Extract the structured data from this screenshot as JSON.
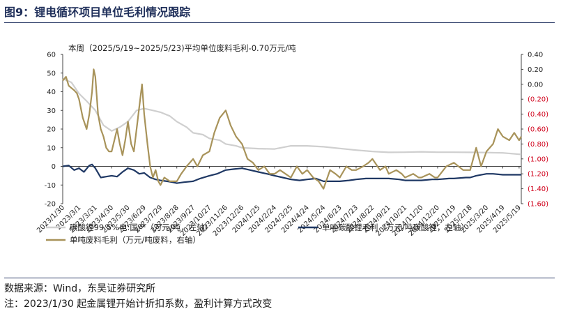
{
  "figure_title": "图9：锂电循环项目单位毛利情况跟踪",
  "source_note": "数据来源：Wind，东吴证券研究所",
  "formula_note": "注：2023/1/30 起金属锂开始计折扣系数，盈利计算方式改变",
  "chart_data": {
    "type": "line",
    "annotation": "本周（2025/5/19~2025/5/23)平均单位废料毛利-0.70万元/吨",
    "left_axis": {
      "ylim": [
        -20,
        60
      ],
      "ticks": [
        -20,
        -10,
        0,
        10,
        20,
        30,
        40,
        50,
        60
      ]
    },
    "right_axis": {
      "ylim": [
        -1.6,
        0.4
      ],
      "ticks": [
        "(1.60)",
        "(1.40)",
        "(1.20)",
        "(1.00)",
        "(0.80)",
        "(0.60)",
        "(0.40)",
        "(0.20)",
        "0.00",
        "0.20",
        "0.40"
      ],
      "tick_values": [
        -1.6,
        -1.4,
        -1.2,
        -1.0,
        -0.8,
        -0.6,
        -0.4,
        -0.2,
        0.0,
        0.2,
        0.4
      ]
    },
    "x_ticks": [
      "2023/1/30",
      "2023/3/1",
      "2023/3/31",
      "2023/4/30",
      "2023/5/30",
      "2023/6/29",
      "2023/7/29",
      "2023/8/28",
      "2023/9/27",
      "2023/10/27",
      "2023/11/26",
      "2023/12/26",
      "2024/1/25",
      "2024/2/24",
      "2024/3/25",
      "2024/4/24",
      "2024/5/24",
      "2024/6/23",
      "2024/7/23",
      "2024/8/22",
      "2024/9/21",
      "2024/10/21",
      "2024/11/20",
      "2024/12/20",
      "2025/1/19",
      "2025/2/18",
      "2025/3/20",
      "2025/4/19",
      "2025/5/19"
    ],
    "series": [
      {
        "name": "碳酸锂99.5%电:国产（万元/吨，左轴）",
        "axis": "left",
        "color": "#cfcfcf",
        "x": [
          "2023/1/30",
          "2023/2/15",
          "2023/3/1",
          "2023/3/15",
          "2023/3/31",
          "2023/4/15",
          "2023/4/30",
          "2023/5/15",
          "2023/5/30",
          "2023/6/15",
          "2023/6/29",
          "2023/7/15",
          "2023/7/29",
          "2023/8/15",
          "2023/8/28",
          "2023/9/15",
          "2023/9/27",
          "2023/10/15",
          "2023/10/27",
          "2023/11/15",
          "2023/11/26",
          "2023/12/15",
          "2023/12/26",
          "2024/1/25",
          "2024/2/24",
          "2024/3/25",
          "2024/4/24",
          "2024/5/24",
          "2024/6/23",
          "2024/7/23",
          "2024/8/22",
          "2024/9/21",
          "2024/10/21",
          "2024/11/20",
          "2024/12/20",
          "2025/1/19",
          "2025/2/18",
          "2025/3/20",
          "2025/4/19",
          "2025/5/19",
          "2025/5/23"
        ],
        "values": [
          47,
          45,
          39,
          35,
          30,
          22,
          19,
          21,
          24,
          30,
          31,
          30,
          29,
          27,
          24,
          21,
          18,
          17,
          15,
          14,
          12,
          11,
          10,
          9.5,
          9.3,
          11,
          11,
          10.5,
          9.6,
          8.7,
          8,
          7.5,
          7.6,
          7.8,
          7.6,
          7.6,
          7.5,
          7.4,
          7.2,
          6.5,
          6.3
        ]
      },
      {
        "name": "单吨碳酸锂毛利（万元/吨碳酸锂，左轴）",
        "axis": "left",
        "color": "#1f3864",
        "x": [
          "2023/1/30",
          "2023/2/10",
          "2023/2/20",
          "2023/3/1",
          "2023/3/10",
          "2023/3/20",
          "2023/3/25",
          "2023/3/31",
          "2023/4/10",
          "2023/4/20",
          "2023/4/30",
          "2023/5/10",
          "2023/5/20",
          "2023/5/25",
          "2023/5/30",
          "2023/6/10",
          "2023/6/20",
          "2023/6/29",
          "2023/7/10",
          "2023/7/20",
          "2023/7/29",
          "2023/8/10",
          "2023/8/20",
          "2023/8/28",
          "2023/9/10",
          "2023/9/27",
          "2023/10/10",
          "2023/10/27",
          "2023/11/10",
          "2023/11/26",
          "2023/12/10",
          "2023/12/26",
          "2024/1/10",
          "2024/1/25",
          "2024/2/10",
          "2024/2/24",
          "2024/3/10",
          "2024/3/25",
          "2024/4/10",
          "2024/4/24",
          "2024/5/10",
          "2024/5/24",
          "2024/6/10",
          "2024/6/23",
          "2024/7/10",
          "2024/7/23",
          "2024/8/10",
          "2024/8/22",
          "2024/9/10",
          "2024/9/21",
          "2024/10/10",
          "2024/10/21",
          "2024/11/10",
          "2024/11/20",
          "2024/12/10",
          "2024/12/20",
          "2025/1/10",
          "2025/1/19",
          "2025/2/10",
          "2025/2/18",
          "2025/3/1",
          "2025/3/20",
          "2025/4/1",
          "2025/4/19",
          "2025/5/1",
          "2025/5/19",
          "2025/5/23"
        ],
        "values": [
          0,
          0.5,
          -2,
          -1,
          -3,
          0.5,
          1,
          -1,
          -6,
          -5.5,
          -5,
          -5.5,
          -3,
          -2,
          -1,
          -2,
          -4,
          -3.5,
          -6,
          -7,
          -7.5,
          -8,
          -8.5,
          -9,
          -8.5,
          -8,
          -6.5,
          -5,
          -4,
          -2,
          -1.5,
          -1,
          -2,
          -3,
          -4,
          -5,
          -6,
          -7,
          -7.5,
          -7,
          -6.5,
          -8,
          -8,
          -8,
          -7.5,
          -7,
          -6.5,
          -6.5,
          -6.5,
          -6.5,
          -7,
          -7.5,
          -7.5,
          -7.5,
          -7,
          -7,
          -6.5,
          -6.5,
          -6,
          -6,
          -5,
          -4,
          -4,
          -4.5,
          -4.5,
          -4.5,
          -4.5
        ]
      },
      {
        "name": "单吨废料毛利（万元/吨废料，右轴）",
        "axis": "right",
        "color": "#a8935a",
        "x": [
          "2023/1/30",
          "2023/2/5",
          "2023/2/10",
          "2023/2/15",
          "2023/2/20",
          "2023/2/25",
          "2023/3/1",
          "2023/3/8",
          "2023/3/15",
          "2023/3/20",
          "2023/3/25",
          "2023/3/28",
          "2023/3/31",
          "2023/4/5",
          "2023/4/10",
          "2023/4/15",
          "2023/4/20",
          "2023/4/25",
          "2023/4/30",
          "2023/5/5",
          "2023/5/10",
          "2023/5/15",
          "2023/5/20",
          "2023/5/25",
          "2023/5/30",
          "2023/6/5",
          "2023/6/10",
          "2023/6/15",
          "2023/6/20",
          "2023/6/25",
          "2023/6/29",
          "2023/7/5",
          "2023/7/10",
          "2023/7/15",
          "2023/7/20",
          "2023/7/25",
          "2023/7/29",
          "2023/8/5",
          "2023/8/15",
          "2023/8/28",
          "2023/9/5",
          "2023/9/15",
          "2023/9/27",
          "2023/10/5",
          "2023/10/15",
          "2023/10/27",
          "2023/11/5",
          "2023/11/15",
          "2023/11/26",
          "2023/12/5",
          "2023/12/15",
          "2023/12/26",
          "2024/1/5",
          "2024/1/15",
          "2024/1/25",
          "2024/2/5",
          "2024/2/15",
          "2024/2/24",
          "2024/3/5",
          "2024/3/15",
          "2024/3/25",
          "2024/4/5",
          "2024/4/15",
          "2024/4/24",
          "2024/5/5",
          "2024/5/15",
          "2024/5/24",
          "2024/6/5",
          "2024/6/15",
          "2024/6/23",
          "2024/7/5",
          "2024/7/15",
          "2024/7/23",
          "2024/8/5",
          "2024/8/15",
          "2024/8/22",
          "2024/9/5",
          "2024/9/15",
          "2024/9/21",
          "2024/10/5",
          "2024/10/15",
          "2024/10/21",
          "2024/11/5",
          "2024/11/15",
          "2024/11/20",
          "2024/12/5",
          "2024/12/15",
          "2024/12/20",
          "2025/1/5",
          "2025/1/19",
          "2025/2/5",
          "2025/2/18",
          "2025/3/1",
          "2025/3/10",
          "2025/3/20",
          "2025/4/1",
          "2025/4/10",
          "2025/4/19",
          "2025/5/1",
          "2025/5/10",
          "2025/5/19",
          "2025/5/23"
        ],
        "values": [
          0.05,
          0.1,
          -0.02,
          -0.05,
          -0.08,
          -0.12,
          -0.2,
          -0.45,
          -0.6,
          -0.4,
          -0.1,
          0.2,
          0.1,
          -0.4,
          -0.6,
          -0.7,
          -0.85,
          -0.9,
          -0.9,
          -0.75,
          -0.6,
          -0.8,
          -0.95,
          -0.75,
          -0.5,
          -0.8,
          -0.9,
          -0.6,
          -0.3,
          0,
          -0.4,
          -0.8,
          -1.1,
          -1.25,
          -1.15,
          -1.3,
          -1.35,
          -1.25,
          -1.3,
          -1.3,
          -1.2,
          -1.1,
          -1.0,
          -1.1,
          -0.95,
          -0.9,
          -0.65,
          -0.45,
          -0.35,
          -0.55,
          -0.7,
          -0.8,
          -1.0,
          -1.05,
          -1.15,
          -1.1,
          -1.2,
          -1.2,
          -1.15,
          -1.2,
          -1.25,
          -1.1,
          -1.2,
          -1.15,
          -1.25,
          -1.3,
          -1.4,
          -1.15,
          -1.2,
          -1.25,
          -1.1,
          -1.15,
          -1.15,
          -1.1,
          -1.05,
          -1.0,
          -1.15,
          -1.1,
          -1.2,
          -1.15,
          -1.2,
          -1.25,
          -1.2,
          -1.25,
          -1.25,
          -1.2,
          -1.25,
          -1.25,
          -1.1,
          -1.05,
          -1.15,
          -1.15,
          -0.85,
          -1.1,
          -0.9,
          -0.8,
          -0.6,
          -0.7,
          -0.75,
          -0.65,
          -0.75,
          -0.7
        ]
      }
    ]
  }
}
